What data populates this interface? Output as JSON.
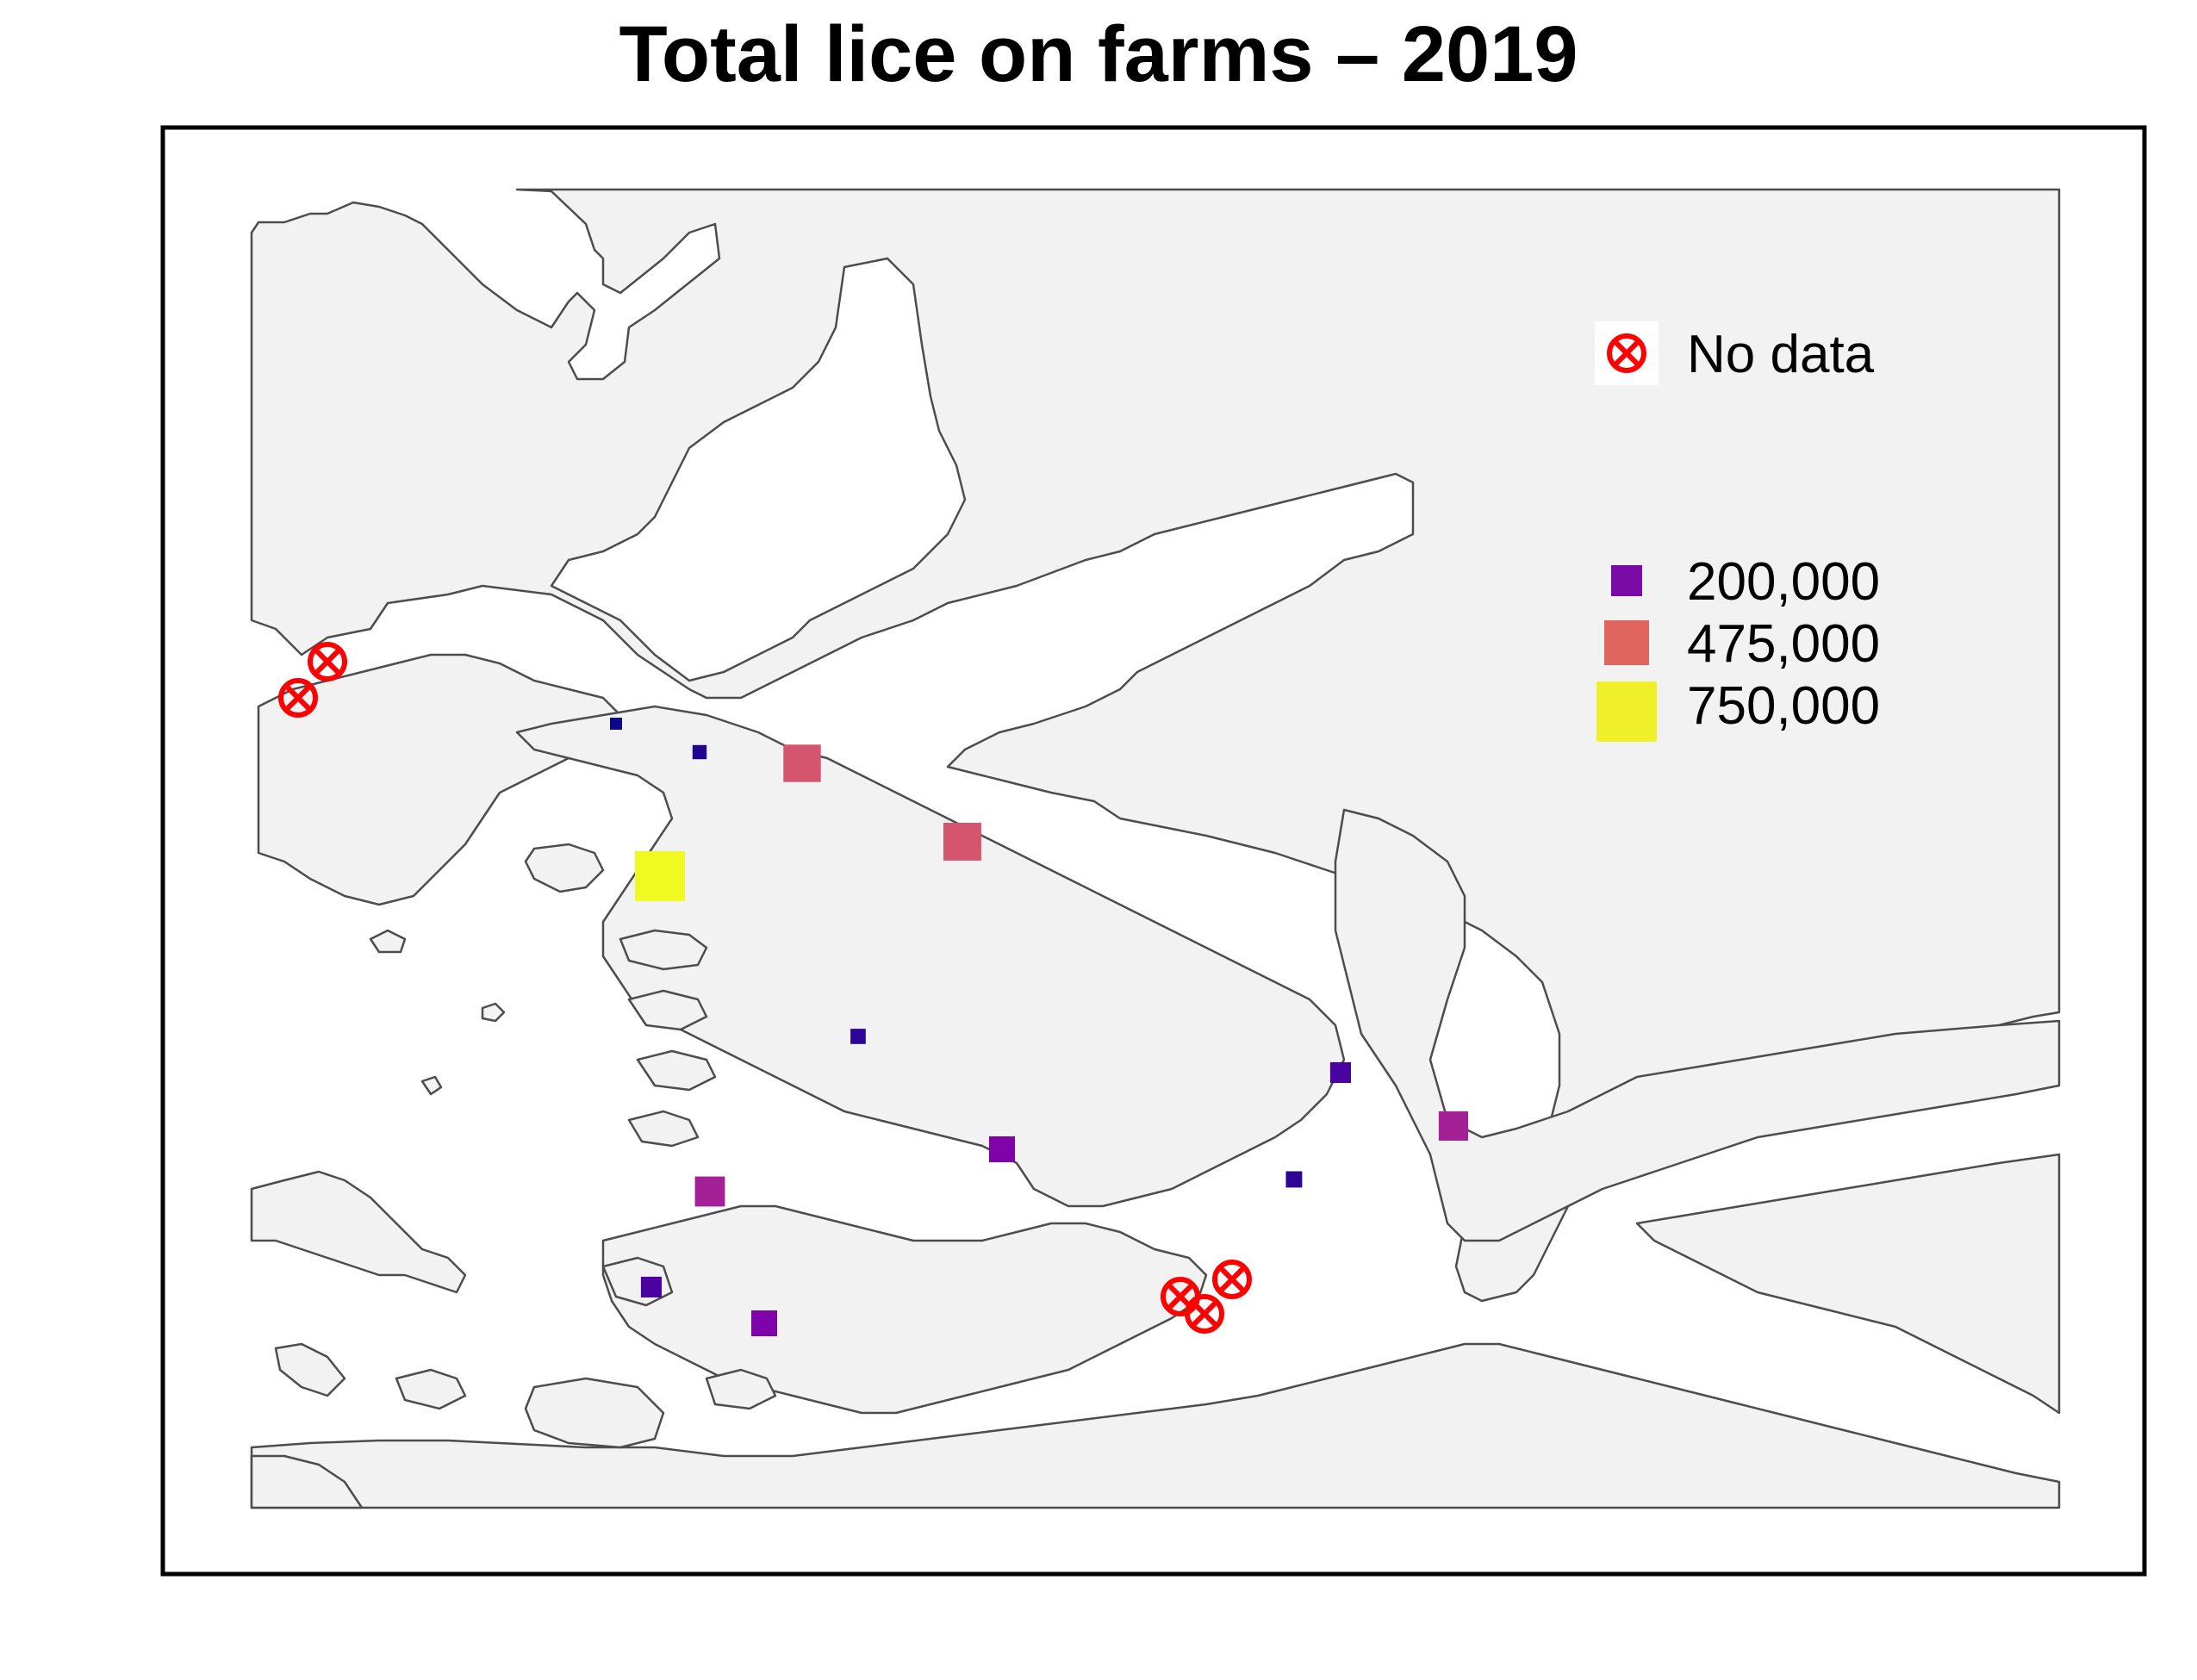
{
  "title": "Total lice on farms – 2019",
  "colors": {
    "land": "#f2f2f2",
    "water": "#ffffff",
    "coastline": "#4d4d4d",
    "frame": "#000000",
    "no_data_marker": "#ff0000"
  },
  "legend": {
    "no_data": {
      "label": "No data",
      "icon": "circled-x-icon",
      "color": "#ff0000"
    },
    "size_scale": [
      {
        "label": "200,000",
        "value": 200000,
        "color": "#7a0ba6"
      },
      {
        "label": "475,000",
        "value": 475000,
        "color": "#e0655f"
      },
      {
        "label": "750,000",
        "value": 750000,
        "color": "#f0f029"
      }
    ]
  },
  "farms": [
    {
      "id": "farm-1",
      "value": 20000,
      "color": "#0d0887"
    },
    {
      "id": "farm-2",
      "value": 60000,
      "color": "#1f0590"
    },
    {
      "id": "farm-3",
      "value": 420000,
      "color": "#d5546e"
    },
    {
      "id": "farm-4",
      "value": 430000,
      "color": "#d5546e"
    },
    {
      "id": "farm-5",
      "value": 750000,
      "color": "#f0f921"
    },
    {
      "id": "farm-6",
      "value": 70000,
      "color": "#2c0594"
    },
    {
      "id": "farm-7",
      "value": 130000,
      "color": "#4a02a0"
    },
    {
      "id": "farm-8",
      "value": 260000,
      "color": "#a42097"
    },
    {
      "id": "farm-9",
      "value": 200000,
      "color": "#7e03a8"
    },
    {
      "id": "farm-10",
      "value": 80000,
      "color": "#2d0494"
    },
    {
      "id": "farm-11",
      "value": 270000,
      "color": "#a42097"
    },
    {
      "id": "farm-12",
      "value": 130000,
      "color": "#4c02a1"
    },
    {
      "id": "farm-13",
      "value": 200000,
      "color": "#7e03a8"
    }
  ],
  "no_data_farms": [
    {
      "id": "nd-1"
    },
    {
      "id": "nd-2"
    },
    {
      "id": "nd-3"
    },
    {
      "id": "nd-4"
    },
    {
      "id": "nd-5"
    }
  ]
}
